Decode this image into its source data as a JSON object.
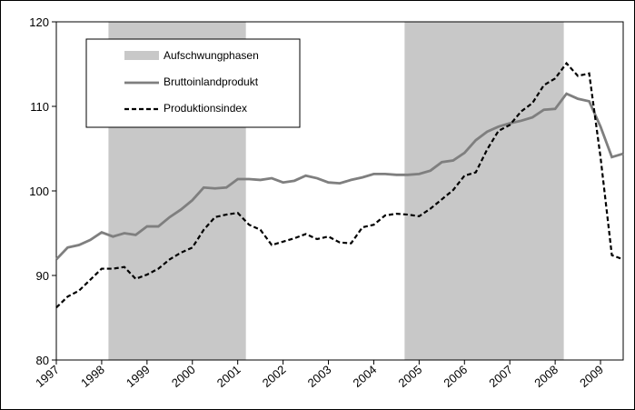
{
  "chart_data": {
    "type": "line",
    "x": [
      1997,
      1997.25,
      1997.5,
      1997.75,
      1998,
      1998.25,
      1998.5,
      1998.75,
      1999,
      1999.25,
      1999.5,
      1999.75,
      2000,
      2000.25,
      2000.5,
      2000.75,
      2001,
      2001.25,
      2001.5,
      2001.75,
      2002,
      2002.25,
      2002.5,
      2002.75,
      2003,
      2003.25,
      2003.5,
      2003.75,
      2004,
      2004.25,
      2004.5,
      2004.75,
      2005,
      2005.25,
      2005.5,
      2005.75,
      2006,
      2006.25,
      2006.5,
      2006.75,
      2007,
      2007.25,
      2007.5,
      2007.75,
      2008,
      2008.25,
      2008.5,
      2008.75,
      2009,
      2009.25,
      2009.5
    ],
    "series": [
      {
        "name": "Bruttoinlandprodukt",
        "color": "#7f7f7f",
        "dash": false,
        "values": [
          91.9,
          93.3,
          93.6,
          94.2,
          95.1,
          94.6,
          95.0,
          94.8,
          95.8,
          95.8,
          96.9,
          97.8,
          98.9,
          100.4,
          100.3,
          100.4,
          101.4,
          101.4,
          101.3,
          101.5,
          101.0,
          101.2,
          101.8,
          101.5,
          101.0,
          100.9,
          101.3,
          101.6,
          102.0,
          102.0,
          101.9,
          101.9,
          102.0,
          102.4,
          103.4,
          103.6,
          104.5,
          106.0,
          107.0,
          107.6,
          108.0,
          108.3,
          108.7,
          109.6,
          109.7,
          111.5,
          110.9,
          110.6,
          107.6,
          104.0,
          104.4
        ]
      },
      {
        "name": "Produktionsindex",
        "color": "#000000",
        "dash": true,
        "values": [
          86.2,
          87.5,
          88.2,
          89.5,
          90.8,
          90.8,
          91.0,
          89.6,
          90.1,
          90.8,
          91.9,
          92.7,
          93.3,
          95.4,
          96.9,
          97.2,
          97.4,
          96.0,
          95.4,
          93.6,
          94.0,
          94.4,
          94.9,
          94.3,
          94.6,
          93.9,
          93.8,
          95.7,
          96.0,
          97.1,
          97.3,
          97.2,
          97.0,
          97.9,
          99.0,
          100.1,
          101.8,
          102.2,
          104.9,
          107.1,
          107.8,
          109.4,
          110.4,
          112.5,
          113.3,
          115.1,
          113.6,
          113.9,
          104.0,
          92.4,
          91.9
        ]
      }
    ],
    "shaded": {
      "name": "Aufschwungphasen",
      "color": "#c8c8c8",
      "ranges": [
        [
          1998.15,
          2001.18
        ],
        [
          2004.68,
          2008.19
        ]
      ]
    },
    "xlim": [
      1997,
      2009.5
    ],
    "xticks": [
      1997,
      1998,
      1999,
      2000,
      2001,
      2002,
      2003,
      2004,
      2005,
      2006,
      2007,
      2008,
      2009
    ],
    "ylim": [
      80,
      120
    ],
    "yticks": [
      80,
      90,
      100,
      110,
      120
    ]
  }
}
